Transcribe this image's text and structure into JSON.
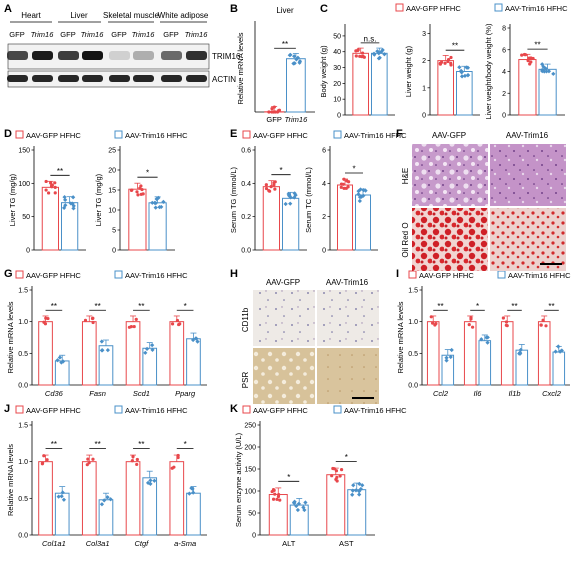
{
  "colors": {
    "gfp": "#e8474b",
    "trim": "#4a90c8"
  },
  "panel_letters": [
    "A",
    "B",
    "C",
    "D",
    "E",
    "F",
    "G",
    "H",
    "I",
    "J",
    "K"
  ],
  "legend": {
    "gfp_hfhc": "AAV-GFP HFHC",
    "trim_hfhc": "AAV-Trim16 HFHC"
  },
  "panel_a": {
    "tissues": [
      "Heart",
      "Liver",
      "Skeletal muscle",
      "White adipose"
    ],
    "lane_labels": [
      "GFP",
      "Trim16",
      "GFP",
      "Trim16",
      "GFP",
      "Trim16",
      "GFP",
      "Trim16"
    ],
    "bands": [
      "TRIM16",
      "ACTIN"
    ]
  },
  "panel_f": {
    "cols": [
      "AAV-GFP",
      "AAV-Trim16"
    ],
    "rows": [
      "H&E",
      "Oil Red O"
    ]
  },
  "panel_h": {
    "cols": [
      "AAV-GFP",
      "AAV-Trim16"
    ],
    "rows": [
      "CD11b",
      "PSR"
    ]
  },
  "chart_data": [
    {
      "id": "B",
      "type": "bar",
      "title": "Liver",
      "ylabel": "Relative mRNA levels",
      "categories": [
        "GFP",
        "Trim16"
      ],
      "values": [
        1,
        245
      ],
      "ylim": [
        0,
        400
      ],
      "significance": [
        "**"
      ],
      "grid": false
    },
    {
      "id": "C1",
      "type": "bar",
      "ylabel": "Body weight (g)",
      "categories": [
        "GFP",
        "Trim16"
      ],
      "values": [
        39,
        39
      ],
      "ylim": [
        0,
        55
      ],
      "yticks": [
        0,
        10,
        20,
        30,
        40,
        50
      ],
      "significance": [
        "n.s."
      ],
      "grid": false
    },
    {
      "id": "C2",
      "type": "bar",
      "ylabel": "Liver weight (g)",
      "categories": [
        "GFP",
        "Trim16"
      ],
      "values": [
        2.0,
        1.6
      ],
      "ylim": [
        0,
        3.2
      ],
      "yticks": [
        0,
        1,
        2,
        3
      ],
      "significance": [
        "**"
      ],
      "grid": false
    },
    {
      "id": "C3",
      "type": "bar",
      "ylabel": "Liver weight/body weight (%)",
      "categories": [
        "GFP",
        "Trim16"
      ],
      "values": [
        5.1,
        4.2
      ],
      "ylim": [
        0,
        8
      ],
      "yticks": [
        0,
        2,
        4,
        6,
        8
      ],
      "significance": [
        "**"
      ],
      "grid": false
    },
    {
      "id": "D1",
      "type": "bar",
      "ylabel": "Liver TG (mg/g)",
      "categories": [
        "GFP",
        "Trim16"
      ],
      "values": [
        94,
        71
      ],
      "ylim": [
        0,
        150
      ],
      "yticks": [
        0,
        50,
        100,
        150
      ],
      "significance": [
        "**"
      ],
      "grid": false
    },
    {
      "id": "D2",
      "type": "bar",
      "ylabel": "Liver TG (mg/g)",
      "categories": [
        "GFP",
        "Trim16"
      ],
      "values": [
        15.2,
        11.8
      ],
      "ylim": [
        0,
        25
      ],
      "yticks": [
        0,
        5,
        10,
        15,
        20,
        25
      ],
      "significance": [
        "*"
      ],
      "grid": false
    },
    {
      "id": "E1",
      "type": "bar",
      "ylabel": "Serum TG (mmol/L)",
      "categories": [
        "GFP",
        "Trim16"
      ],
      "values": [
        0.38,
        0.31
      ],
      "ylim": [
        0,
        0.6
      ],
      "yticks": [
        0,
        0.2,
        0.4,
        0.6
      ],
      "significance": [
        "*"
      ],
      "grid": false
    },
    {
      "id": "E2",
      "type": "bar",
      "ylabel": "Serum TC (mmol/L)",
      "categories": [
        "GFP",
        "Trim16"
      ],
      "values": [
        3.9,
        3.3
      ],
      "ylim": [
        0,
        6
      ],
      "yticks": [
        0,
        2,
        4,
        6
      ],
      "significance": [
        "*"
      ],
      "grid": false
    },
    {
      "id": "G",
      "type": "bar",
      "ylabel": "Relative mRNA levels",
      "categories": [
        "Cd36",
        "Fasn",
        "Scd1",
        "Pparg"
      ],
      "series": [
        {
          "name": "AAV-GFP HFHC",
          "values": [
            1.0,
            1.0,
            1.0,
            1.0
          ]
        },
        {
          "name": "AAV-Trim16 HFHC",
          "values": [
            0.38,
            0.62,
            0.58,
            0.73
          ]
        }
      ],
      "ylim": [
        0,
        1.5
      ],
      "yticks": [
        0.0,
        0.5,
        1.0,
        1.5
      ],
      "significance": [
        "**",
        "**",
        "**",
        "*"
      ],
      "grid": false
    },
    {
      "id": "I",
      "type": "bar",
      "ylabel": "Relative mRNA levels",
      "categories": [
        "Ccl2",
        "Il6",
        "Il1b",
        "Cxcl2"
      ],
      "series": [
        {
          "name": "AAV-GFP HFHC",
          "values": [
            1.0,
            1.0,
            1.0,
            1.0
          ]
        },
        {
          "name": "AAV-Trim16 HFHC",
          "values": [
            0.47,
            0.7,
            0.55,
            0.52
          ]
        }
      ],
      "ylim": [
        0,
        1.5
      ],
      "yticks": [
        0.0,
        0.5,
        1.0,
        1.5
      ],
      "significance": [
        "**",
        "*",
        "**",
        "**"
      ],
      "grid": false
    },
    {
      "id": "J",
      "type": "bar",
      "ylabel": "Relative mRNA levels",
      "categories": [
        "Col1a1",
        "Col3a1",
        "Ctgf",
        "a-Sma"
      ],
      "series": [
        {
          "name": "AAV-GFP HFHC",
          "values": [
            1.0,
            1.0,
            1.0,
            1.0
          ]
        },
        {
          "name": "AAV-Trim16 HFHC",
          "values": [
            0.57,
            0.48,
            0.78,
            0.57
          ]
        }
      ],
      "ylim": [
        0,
        1.5
      ],
      "yticks": [
        0.0,
        0.5,
        1.0,
        1.5
      ],
      "significance": [
        "**",
        "**",
        "**",
        "*"
      ],
      "grid": false
    },
    {
      "id": "K",
      "type": "bar",
      "ylabel": "Serum enzyme activity (U/L)",
      "categories": [
        "ALT",
        "AST"
      ],
      "series": [
        {
          "name": "AAV-GFP HFHC",
          "values": [
            92,
            137
          ]
        },
        {
          "name": "AAV-Trim16 HFHC",
          "values": [
            68,
            103
          ]
        }
      ],
      "ylim": [
        0,
        250
      ],
      "yticks": [
        0,
        50,
        100,
        150,
        200,
        250
      ],
      "significance": [
        "*",
        "*"
      ],
      "grid": false
    }
  ]
}
